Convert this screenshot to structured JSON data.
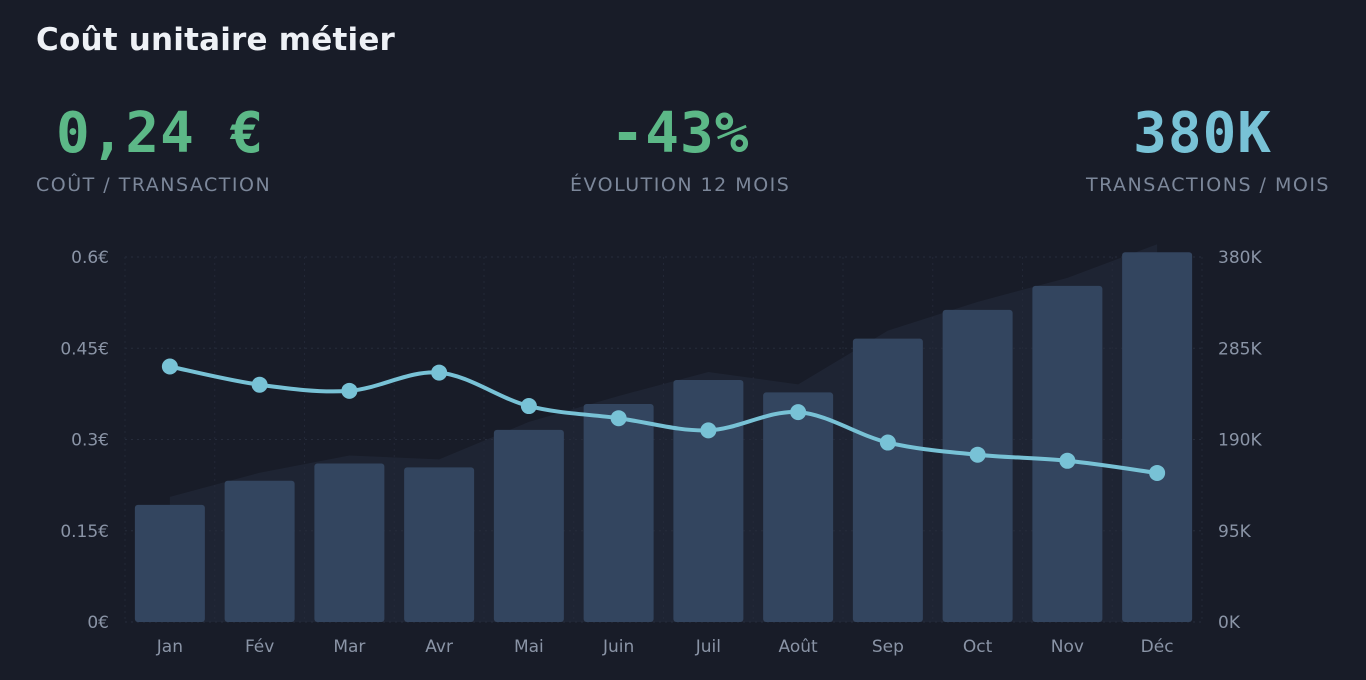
{
  "title": "Coût unitaire métier",
  "kpis": {
    "cost": {
      "value": "0,24 €",
      "label": "COÛT / TRANSACTION"
    },
    "evolution": {
      "value": "-43%",
      "label": "ÉVOLUTION 12 MOIS"
    },
    "transactions": {
      "value": "380K",
      "label": "TRANSACTIONS / MOIS"
    }
  },
  "colors": {
    "background": "#181c28",
    "bars": "#33455f",
    "line": "#78c2d6",
    "green": "#5cb887",
    "muted_text": "#8a94a6"
  },
  "chart_data": {
    "type": "bar",
    "categories": [
      "Jan",
      "Fév",
      "Mar",
      "Avr",
      "Mai",
      "Juin",
      "Juil",
      "Août",
      "Sep",
      "Oct",
      "Nov",
      "Déc"
    ],
    "series": [
      {
        "type": "bar",
        "axis": "right",
        "values": [
          122000,
          147000,
          165000,
          161000,
          200000,
          227000,
          252000,
          239000,
          295000,
          325000,
          350000,
          385000
        ]
      },
      {
        "type": "line",
        "axis": "left",
        "values": [
          0.42,
          0.39,
          0.38,
          0.41,
          0.355,
          0.335,
          0.315,
          0.345,
          0.295,
          0.275,
          0.265,
          0.245
        ]
      }
    ],
    "left_axis": {
      "ylim": [
        0,
        0.6
      ],
      "ticks": [
        0,
        0.15,
        0.3,
        0.45,
        0.6
      ],
      "tick_labels": [
        "0€",
        "0.15€",
        "0.3€",
        "0.45€",
        "0.6€"
      ]
    },
    "right_axis": {
      "ylim": [
        0,
        380000
      ],
      "ticks": [
        0,
        95000,
        190000,
        285000,
        380000
      ],
      "tick_labels": [
        "0K",
        "95K",
        "190K",
        "285K",
        "380K"
      ]
    },
    "grid": true
  }
}
